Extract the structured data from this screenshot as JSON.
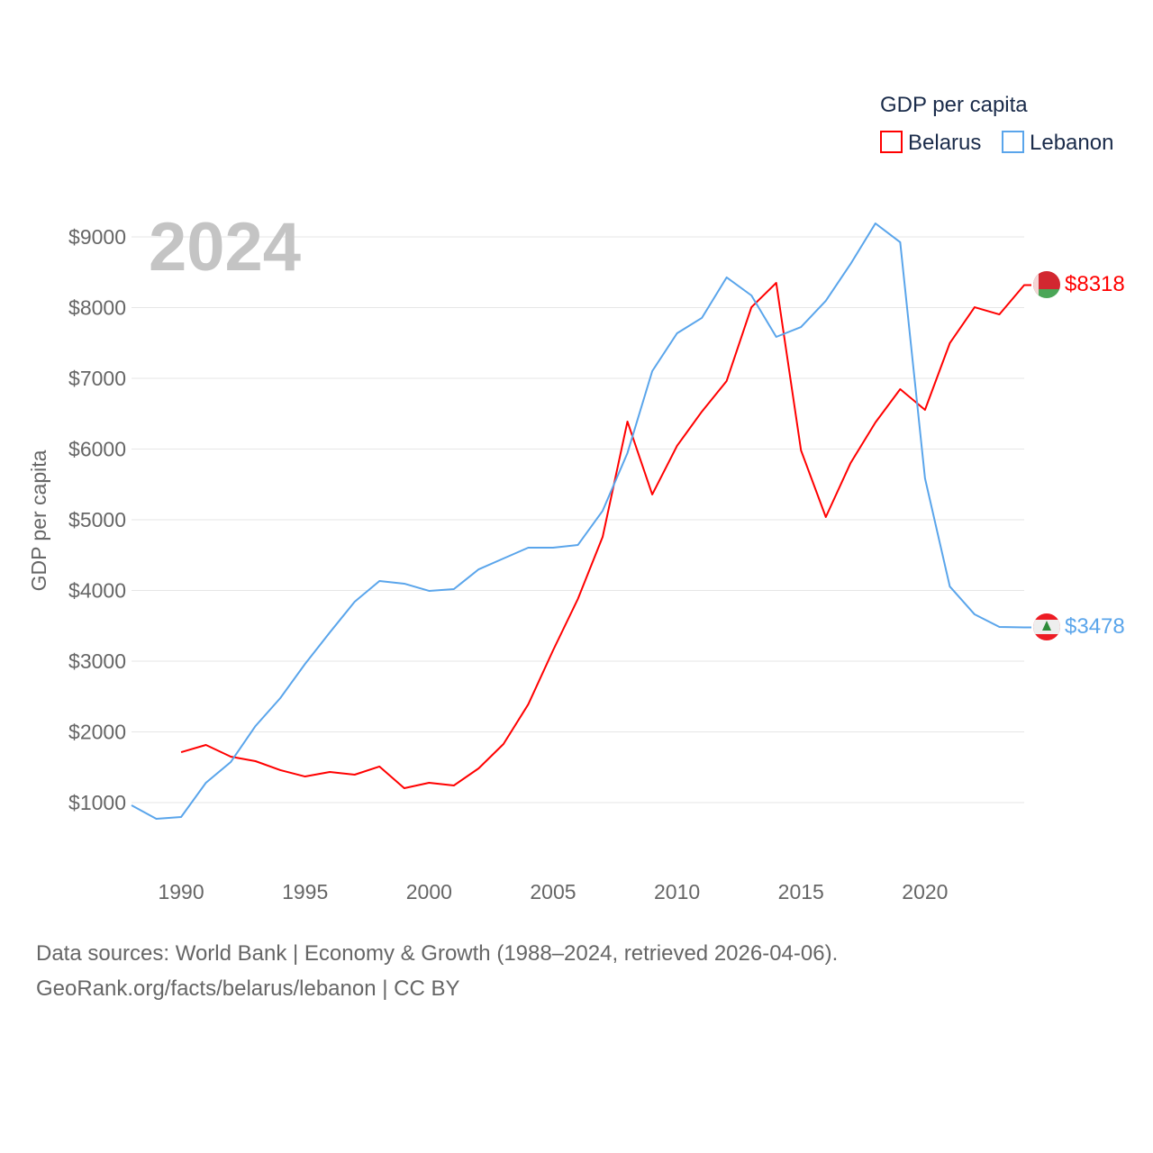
{
  "chart_data": {
    "type": "line",
    "title": "GDP per capita",
    "watermark_year": "2024",
    "xlabel": "",
    "ylabel": "GDP per capita",
    "xlim": [
      1988,
      2024
    ],
    "ylim": [
      0,
      9000
    ],
    "x_ticks": [
      "1990",
      "1995",
      "2000",
      "2005",
      "2010",
      "2015",
      "2020"
    ],
    "y_ticks": [
      "$1000",
      "$2000",
      "$3000",
      "$4000",
      "$5000",
      "$6000",
      "$7000",
      "$8000",
      "$9000"
    ],
    "grid": true,
    "legend_position": "top-right",
    "series": [
      {
        "name": "Belarus",
        "color": "#ff0000",
        "end_label": "$8318",
        "start_year": 1990,
        "values": [
          1713,
          1815,
          1650,
          1586,
          1459,
          1369,
          1433,
          1395,
          1510,
          1204,
          1280,
          1242,
          1484,
          1828,
          2389,
          3153,
          3879,
          4758,
          6389,
          5357,
          6045,
          6529,
          6962,
          8006,
          8350,
          5981,
          5038,
          5803,
          6376,
          6847,
          6554,
          7497,
          8006,
          7904,
          8318
        ]
      },
      {
        "name": "Lebanon",
        "color": "#5aa5eb",
        "end_label": "$3478",
        "start_year": 1988,
        "values": [
          962,
          771,
          796,
          1280,
          1573,
          2083,
          2478,
          2962,
          3408,
          3841,
          4134,
          4096,
          3994,
          4019,
          4299,
          4452,
          4605,
          4605,
          4643,
          5127,
          5943,
          7102,
          7637,
          7854,
          8427,
          8172,
          7586,
          7726,
          8096,
          8618,
          9191,
          8924,
          5586,
          4057,
          3662,
          3484,
          3478
        ]
      }
    ]
  },
  "footer": {
    "line1": "Data sources: World Bank | Economy & Growth (1988–2024, retrieved 2026-04-06).",
    "line2": "GeoRank.org/facts/belarus/lebanon | CC BY"
  }
}
